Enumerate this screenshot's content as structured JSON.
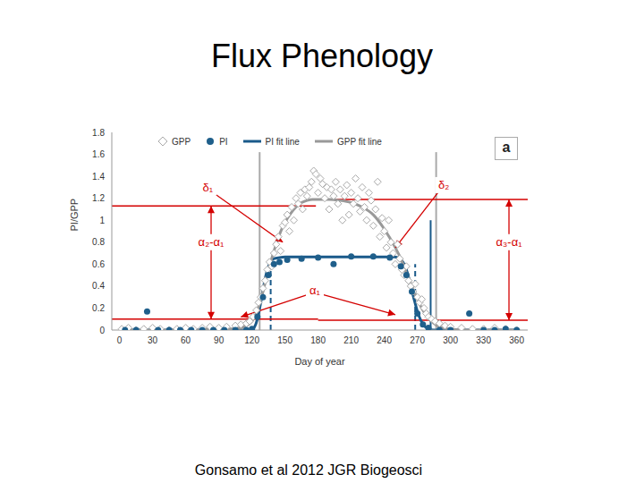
{
  "title": "Flux Phenology",
  "caption": "Gonsamo et al 2012 JGR Biogeosci",
  "chart_data": {
    "type": "scatter",
    "panel_label": "a",
    "x_label": "Day of year",
    "y_label": "PI/GPP",
    "xlim": [
      -7,
      370
    ],
    "xticks": [
      0,
      30,
      60,
      90,
      120,
      150,
      180,
      210,
      240,
      270,
      300,
      330,
      360
    ],
    "ylim": [
      0,
      1.8
    ],
    "yticks": [
      0,
      0.2,
      0.4,
      0.6,
      0.8,
      1,
      1.2,
      1.4,
      1.6,
      1.8
    ],
    "grid": false,
    "legend": "top",
    "series": [
      {
        "name": "GPP",
        "type": "scatter",
        "marker": "diamond",
        "color": "#aaaaaa",
        "x": [
          2,
          8,
          15,
          22,
          30,
          37,
          45,
          52,
          60,
          67,
          75,
          82,
          90,
          97,
          105,
          110,
          115,
          118,
          121,
          124,
          126,
          128,
          130,
          132,
          134,
          136,
          138,
          140,
          142,
          144,
          146,
          148,
          150,
          152,
          154,
          156,
          158,
          160,
          162,
          164,
          166,
          168,
          170,
          172,
          174,
          176,
          178,
          180,
          182,
          184,
          186,
          188,
          190,
          192,
          194,
          196,
          198,
          200,
          202,
          204,
          206,
          208,
          210,
          212,
          214,
          216,
          218,
          220,
          222,
          224,
          226,
          228,
          230,
          232,
          234,
          236,
          238,
          240,
          242,
          244,
          246,
          248,
          250,
          252,
          254,
          256,
          258,
          260,
          262,
          264,
          266,
          268,
          270,
          272,
          274,
          276,
          278,
          280,
          283,
          286,
          290,
          295,
          300,
          310,
          320,
          330,
          340,
          350,
          360
        ],
        "values": [
          0.01,
          0.02,
          0,
          0.01,
          0.02,
          0.01,
          0,
          0.01,
          0.02,
          0.01,
          0.02,
          0.03,
          0.02,
          0.03,
          0.04,
          0.05,
          0.06,
          0.08,
          0.12,
          0.18,
          0.25,
          0.3,
          0.38,
          0.45,
          0.55,
          0.62,
          0.58,
          0.7,
          0.78,
          0.85,
          0.72,
          0.95,
          0.98,
          1.05,
          0.9,
          1.12,
          1.0,
          1.2,
          1.15,
          1.25,
          1.1,
          1.28,
          1.22,
          1.3,
          1.35,
          1.45,
          1.42,
          1.25,
          1.38,
          1.33,
          1.2,
          1.3,
          1.1,
          1.28,
          1.22,
          1.35,
          1.15,
          1.28,
          1.0,
          1.22,
          1.32,
          1.05,
          1.25,
          1.15,
          1.38,
          1.2,
          1.08,
          1.3,
          1.12,
          1.0,
          1.25,
          1.18,
          0.95,
          1.1,
          1.35,
          0.85,
          1.02,
          0.9,
          0.75,
          1.0,
          0.8,
          0.7,
          0.6,
          0.78,
          0.65,
          0.55,
          0.5,
          0.58,
          0.45,
          0.4,
          0.35,
          0.42,
          0.3,
          0.25,
          0.28,
          0.2,
          0.15,
          0.12,
          0.1,
          0.08,
          0.06,
          0.04,
          0.03,
          0.02,
          0.01,
          0.01,
          0.02,
          0.01,
          0
        ]
      },
      {
        "name": "PI",
        "type": "scatter",
        "marker": "circle",
        "color": "#1f5f8b",
        "x": [
          5,
          15,
          25,
          35,
          45,
          55,
          65,
          75,
          85,
          95,
          105,
          115,
          120,
          125,
          130,
          135,
          140,
          145,
          152,
          165,
          180,
          194,
          210,
          230,
          245,
          255,
          260,
          265,
          270,
          275,
          280,
          290,
          300,
          317,
          330,
          340,
          350,
          360
        ],
        "values": [
          0,
          0,
          0.17,
          0,
          0,
          0,
          0,
          0,
          0,
          0,
          0,
          0,
          0.01,
          0.12,
          0.3,
          0.5,
          0.6,
          0.62,
          0.64,
          0.65,
          0.66,
          0.6,
          0.67,
          0.67,
          0.66,
          0.58,
          0.5,
          0.35,
          0.15,
          0.05,
          0.02,
          0,
          0,
          0.15,
          0,
          0,
          0.01,
          0
        ]
      },
      {
        "name": "PI fit line",
        "type": "line",
        "line_style": "solid",
        "color": "#1a5a8a",
        "x": [
          0,
          60,
          120,
          122,
          125,
          128,
          131,
          134,
          137,
          140,
          145,
          150,
          200,
          250,
          255,
          258,
          261,
          264,
          267,
          270,
          273,
          276,
          280,
          285,
          320,
          360
        ],
        "values": [
          0,
          0,
          0,
          0.02,
          0.1,
          0.25,
          0.42,
          0.55,
          0.62,
          0.65,
          0.66,
          0.665,
          0.665,
          0.665,
          0.64,
          0.6,
          0.52,
          0.4,
          0.28,
          0.17,
          0.09,
          0.04,
          0.01,
          0,
          0,
          0
        ]
      },
      {
        "name": "GPP fit line",
        "type": "line",
        "line_style": "solid",
        "color": "#999999",
        "x": [
          0,
          10,
          20,
          30,
          40,
          50,
          60,
          70,
          80,
          90,
          100,
          110,
          115,
          120,
          125,
          130,
          135,
          140,
          145,
          150,
          155,
          160,
          165,
          170,
          175,
          180,
          190,
          200,
          210,
          220,
          230,
          240,
          250,
          255,
          260,
          265,
          270,
          275,
          280,
          285,
          290,
          300,
          310,
          320,
          330,
          340,
          350,
          360
        ],
        "values": [
          0,
          0,
          0,
          0,
          0,
          0,
          0,
          0,
          0.01,
          0.01,
          0.01,
          0.02,
          0.04,
          0.08,
          0.18,
          0.35,
          0.55,
          0.72,
          0.87,
          0.98,
          1.06,
          1.12,
          1.16,
          1.18,
          1.19,
          1.19,
          1.19,
          1.18,
          1.16,
          1.12,
          1.05,
          0.92,
          0.75,
          0.65,
          0.52,
          0.4,
          0.28,
          0.18,
          0.11,
          0.06,
          0.03,
          0.01,
          0,
          0,
          0,
          0,
          0,
          0
        ]
      }
    ],
    "reference_lines": [
      {
        "x": 127,
        "y": [
          0,
          1.62
        ],
        "color": "#aaaaaa",
        "line_style": "solid"
      },
      {
        "x": 287,
        "y": [
          0,
          1.62
        ],
        "color": "#aaaaaa",
        "line_style": "solid"
      },
      {
        "x": 137,
        "y": [
          0,
          0.65
        ],
        "color": "#1a5a8a",
        "line_style": "dashed"
      },
      {
        "x": 268,
        "y": [
          0,
          0.6
        ],
        "color": "#1a5a8a",
        "line_style": "dashed"
      },
      {
        "x": 282,
        "y": [
          0,
          1.0
        ],
        "color": "#1a5a8a",
        "line_style": "solid"
      },
      {
        "y": 1.13,
        "x": [
          -7,
          178
        ],
        "color": "#d40000",
        "line_style": "solid"
      },
      {
        "y": 1.19,
        "x": [
          185,
          370
        ],
        "color": "#d40000",
        "line_style": "solid"
      },
      {
        "y": 0.1,
        "x": [
          -7,
          180
        ],
        "color": "#d40000",
        "line_style": "solid"
      },
      {
        "y": 0.09,
        "x": [
          180,
          370
        ],
        "color": "#d40000",
        "line_style": "solid"
      }
    ],
    "arrows": [
      {
        "from": [
          85,
          1.25
        ],
        "to": [
          148,
          0.8
        ],
        "color": "#d40000",
        "line_style": "arrow"
      },
      {
        "from": [
          290,
          1.27
        ],
        "to": [
          250,
          0.75
        ],
        "color": "#d40000",
        "line_style": "arrow"
      },
      {
        "from": [
          170,
          0.32
        ],
        "to": [
          110,
          0.12
        ],
        "color": "#d40000",
        "line_style": "arrow"
      },
      {
        "from": [
          185,
          0.32
        ],
        "to": [
          250,
          0.14
        ],
        "color": "#d40000",
        "line_style": "arrow"
      },
      {
        "from": [
          83,
          0.1
        ],
        "to": [
          83,
          1.13
        ],
        "color": "#d40000",
        "line_style": "double_arrow"
      },
      {
        "from": [
          353,
          0.09
        ],
        "to": [
          353,
          1.19
        ],
        "color": "#d40000",
        "line_style": "double_arrow"
      }
    ],
    "annotations": [
      {
        "text": "δ₁",
        "x": 80,
        "y": 1.3,
        "color": "#d40000"
      },
      {
        "text": "δ₂",
        "x": 294,
        "y": 1.32,
        "color": "#d40000"
      },
      {
        "text": "α₂-α₁",
        "x": 83,
        "y": 0.8,
        "color": "#d40000"
      },
      {
        "text": "α₃-α₁",
        "x": 353,
        "y": 0.8,
        "color": "#d40000"
      },
      {
        "text": "α₁",
        "x": 177,
        "y": 0.36,
        "color": "#d40000"
      }
    ]
  }
}
